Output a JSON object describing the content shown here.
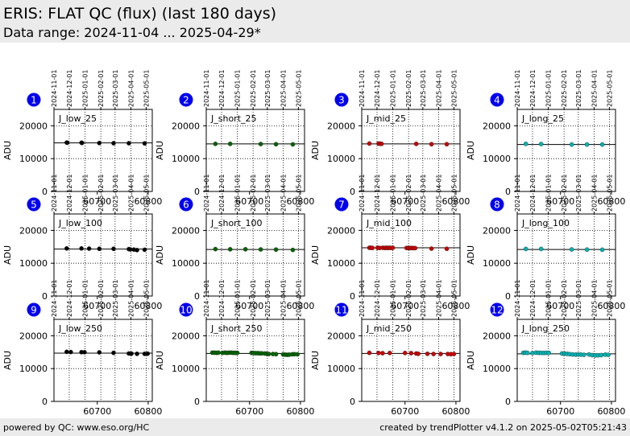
{
  "header": {
    "title": "ERIS: FLAT QC (flux) (last 180 days)",
    "subtitle": "Data range: 2024-11-04 ... 2025-04-29*"
  },
  "footer": {
    "left": "powered by QC: www.eso.org/HC",
    "right": "created by trendPlotter v4.1.2 on 2025-05-02T05:21:43"
  },
  "colors": {
    "black": "#000000",
    "green": "#006400",
    "red": "#cc0000",
    "cyan": "#00b3b3",
    "badge": "#0000ee"
  },
  "chart_data": [
    {
      "type": "scatter",
      "panel": 1,
      "label": "J_low_25",
      "color": "#000000",
      "ylabel": "ADU",
      "ylim": [
        0,
        25000
      ],
      "xlim": [
        60615,
        60808
      ],
      "yticks": [
        0,
        10000,
        20000
      ],
      "xticks": [
        60700,
        60800
      ],
      "date_ticks": [
        "2024-11-01",
        "2024-12-01",
        "2025-01-01",
        "2025-02-01",
        "2025-03-01",
        "2025-04-01",
        "2025-05-01"
      ],
      "ref": 14800,
      "points": [
        [
          60640,
          14900
        ],
        [
          60641,
          14850
        ],
        [
          60669,
          14850
        ],
        [
          60670,
          14800
        ],
        [
          60704,
          14750
        ],
        [
          60732,
          14700
        ],
        [
          60762,
          14700
        ],
        [
          60793,
          14650
        ]
      ]
    },
    {
      "type": "scatter",
      "panel": 2,
      "label": "J_short_25",
      "color": "#006400",
      "ylabel": "ADU",
      "ylim": [
        0,
        25000
      ],
      "xlim": [
        60615,
        60808
      ],
      "yticks": [
        0,
        10000,
        20000
      ],
      "xticks": [
        60700,
        60800
      ],
      "date_ticks": [
        "2024-11-01",
        "2024-12-01",
        "2025-01-01",
        "2025-02-01",
        "2025-03-01",
        "2025-04-01",
        "2025-05-01"
      ],
      "ref": 14500,
      "points": [
        [
          60633,
          14500
        ],
        [
          60662,
          14500
        ],
        [
          60722,
          14450
        ],
        [
          60752,
          14400
        ],
        [
          60785,
          14350
        ]
      ]
    },
    {
      "type": "scatter",
      "panel": 3,
      "label": "J_mid_25",
      "color": "#cc0000",
      "ylabel": "ADU",
      "ylim": [
        0,
        25000
      ],
      "xlim": [
        60615,
        60808
      ],
      "yticks": [
        0,
        10000,
        20000
      ],
      "xticks": [
        60700,
        60800
      ],
      "date_ticks": [
        "2024-11-01",
        "2024-12-01",
        "2025-01-01",
        "2025-02-01",
        "2025-03-01",
        "2025-04-01",
        "2025-05-01"
      ],
      "ref": 14500,
      "points": [
        [
          60630,
          14600
        ],
        [
          60648,
          14600
        ],
        [
          60651,
          14550
        ],
        [
          60654,
          14500
        ],
        [
          60722,
          14500
        ],
        [
          60752,
          14400
        ],
        [
          60782,
          14400
        ]
      ]
    },
    {
      "type": "scatter",
      "panel": 4,
      "label": "J_long_25",
      "color": "#00b3b3",
      "ylabel": "ADU",
      "ylim": [
        0,
        25000
      ],
      "xlim": [
        60615,
        60808
      ],
      "yticks": [
        0,
        10000,
        20000
      ],
      "xticks": [
        60700,
        60800
      ],
      "date_ticks": [
        "2024-11-01",
        "2024-12-01",
        "2025-01-01",
        "2025-02-01",
        "2025-03-01",
        "2025-04-01",
        "2025-05-01"
      ],
      "ref": 14300,
      "points": [
        [
          60632,
          14500
        ],
        [
          60662,
          14450
        ],
        [
          60722,
          14300
        ],
        [
          60752,
          14300
        ],
        [
          60782,
          14300
        ]
      ]
    },
    {
      "type": "scatter",
      "panel": 5,
      "label": "J_low_100",
      "color": "#000000",
      "ylabel": "ADU",
      "ylim": [
        0,
        25000
      ],
      "xlim": [
        60615,
        60808
      ],
      "yticks": [
        0,
        10000,
        20000
      ],
      "xticks": [
        60700,
        60800
      ],
      "date_ticks": [
        "2024-11-01",
        "2024-12-01",
        "2025-01-01",
        "2025-02-01",
        "2025-03-01",
        "2025-04-01",
        "2025-05-01"
      ],
      "ref": 14300,
      "points": [
        [
          60640,
          14500
        ],
        [
          60669,
          14500
        ],
        [
          60684,
          14450
        ],
        [
          60704,
          14400
        ],
        [
          60732,
          14400
        ],
        [
          60762,
          14300
        ],
        [
          60765,
          14200
        ],
        [
          60772,
          14150
        ],
        [
          60778,
          14000
        ],
        [
          60793,
          14100
        ]
      ]
    },
    {
      "type": "scatter",
      "panel": 6,
      "label": "J_short_100",
      "color": "#006400",
      "ylabel": "ADU",
      "ylim": [
        0,
        25000
      ],
      "xlim": [
        60615,
        60808
      ],
      "yticks": [
        0,
        10000,
        20000
      ],
      "xticks": [
        60700,
        60800
      ],
      "date_ticks": [
        "2024-11-01",
        "2024-12-01",
        "2025-01-01",
        "2025-02-01",
        "2025-03-01",
        "2025-04-01",
        "2025-05-01"
      ],
      "ref": 14200,
      "points": [
        [
          60633,
          14300
        ],
        [
          60662,
          14250
        ],
        [
          60692,
          14250
        ],
        [
          60722,
          14200
        ],
        [
          60752,
          14150
        ],
        [
          60785,
          14050
        ]
      ]
    },
    {
      "type": "scatter",
      "panel": 7,
      "label": "J_mid_100",
      "color": "#cc0000",
      "ylabel": "ADU",
      "ylim": [
        0,
        25000
      ],
      "xlim": [
        60615,
        60808
      ],
      "yticks": [
        0,
        10000,
        20000
      ],
      "xticks": [
        60700,
        60800
      ],
      "date_ticks": [
        "2024-11-01",
        "2024-12-01",
        "2025-01-01",
        "2025-02-01",
        "2025-03-01",
        "2025-04-01",
        "2025-05-01"
      ],
      "ref": 14700,
      "points": [
        [
          60630,
          14700
        ],
        [
          60633,
          14700
        ],
        [
          60636,
          14650
        ],
        [
          60646,
          14700
        ],
        [
          60650,
          14650
        ],
        [
          60656,
          14700
        ],
        [
          60660,
          14650
        ],
        [
          60663,
          14700
        ],
        [
          60666,
          14650
        ],
        [
          60669,
          14700
        ],
        [
          60672,
          14650
        ],
        [
          60676,
          14700
        ],
        [
          60703,
          14650
        ],
        [
          60707,
          14650
        ],
        [
          60710,
          14600
        ],
        [
          60713,
          14650
        ],
        [
          60716,
          14600
        ],
        [
          60720,
          14600
        ],
        [
          60752,
          14450
        ],
        [
          60782,
          14400
        ]
      ]
    },
    {
      "type": "scatter",
      "panel": 8,
      "label": "J_long_100",
      "color": "#00b3b3",
      "ylabel": "ADU",
      "ylim": [
        0,
        25000
      ],
      "xlim": [
        60615,
        60808
      ],
      "yticks": [
        0,
        10000,
        20000
      ],
      "xticks": [
        60700,
        60800
      ],
      "date_ticks": [
        "2024-11-01",
        "2024-12-01",
        "2025-01-01",
        "2025-02-01",
        "2025-03-01",
        "2025-04-01",
        "2025-05-01"
      ],
      "ref": 14200,
      "points": [
        [
          60632,
          14350
        ],
        [
          60662,
          14350
        ],
        [
          60722,
          14200
        ],
        [
          60752,
          14150
        ],
        [
          60782,
          14100
        ]
      ]
    },
    {
      "type": "scatter",
      "panel": 9,
      "label": "J_low_250",
      "color": "#000000",
      "ylabel": "ADU",
      "ylim": [
        0,
        25000
      ],
      "xlim": [
        60615,
        60808
      ],
      "yticks": [
        0,
        10000,
        20000
      ],
      "xticks": [
        60700,
        60800
      ],
      "date_ticks": [
        "2024-11-01",
        "2024-12-01",
        "2025-01-01",
        "2025-02-01",
        "2025-03-01",
        "2025-04-01",
        "2025-05-01"
      ],
      "ref": 14700,
      "points": [
        [
          60640,
          15100
        ],
        [
          60648,
          15050
        ],
        [
          60669,
          15000
        ],
        [
          60675,
          15000
        ],
        [
          60704,
          14950
        ],
        [
          60732,
          14800
        ],
        [
          60762,
          14600
        ],
        [
          60767,
          14550
        ],
        [
          60778,
          14500
        ],
        [
          60793,
          14500
        ],
        [
          60799,
          14550
        ]
      ]
    },
    {
      "type": "scatter",
      "panel": 10,
      "label": "J_short_250",
      "color": "#006400",
      "ylabel": "ADU",
      "ylim": [
        0,
        25000
      ],
      "xlim": [
        60615,
        60808
      ],
      "yticks": [
        0,
        10000,
        20000
      ],
      "xticks": [
        60700,
        60800
      ],
      "date_ticks": [
        "2024-11-01",
        "2024-12-01",
        "2025-01-01",
        "2025-02-01",
        "2025-03-01",
        "2025-04-01",
        "2025-05-01"
      ],
      "ref": 14600,
      "points": [
        [
          60627,
          14850
        ],
        [
          60631,
          14850
        ],
        [
          60635,
          14800
        ],
        [
          60639,
          14850
        ],
        [
          60647,
          14800
        ],
        [
          60652,
          14850
        ],
        [
          60656,
          14800
        ],
        [
          60660,
          14850
        ],
        [
          60664,
          14850
        ],
        [
          60668,
          14800
        ],
        [
          60672,
          14800
        ],
        [
          60676,
          14800
        ],
        [
          60704,
          14800
        ],
        [
          60708,
          14750
        ],
        [
          60712,
          14700
        ],
        [
          60716,
          14700
        ],
        [
          60720,
          14650
        ],
        [
          60724,
          14650
        ],
        [
          60730,
          14600
        ],
        [
          60734,
          14500
        ],
        [
          60738,
          14450
        ],
        [
          60746,
          14450
        ],
        [
          60752,
          14400
        ],
        [
          60766,
          14300
        ],
        [
          60770,
          14250
        ],
        [
          60774,
          14200
        ],
        [
          60778,
          14250
        ],
        [
          60784,
          14350
        ],
        [
          60788,
          14400
        ],
        [
          60794,
          14350
        ]
      ]
    },
    {
      "type": "scatter",
      "panel": 11,
      "label": "J_mid_250",
      "color": "#cc0000",
      "ylabel": "ADU",
      "ylim": [
        0,
        25000
      ],
      "xlim": [
        60615,
        60808
      ],
      "yticks": [
        0,
        10000,
        20000
      ],
      "xticks": [
        60700,
        60800
      ],
      "date_ticks": [
        "2024-11-01",
        "2024-12-01",
        "2025-01-01",
        "2025-02-01",
        "2025-03-01",
        "2025-04-01",
        "2025-05-01"
      ],
      "ref": 14600,
      "points": [
        [
          60630,
          14800
        ],
        [
          60648,
          14750
        ],
        [
          60656,
          14700
        ],
        [
          60670,
          14750
        ],
        [
          60700,
          14750
        ],
        [
          60712,
          14700
        ],
        [
          60722,
          14600
        ],
        [
          60726,
          14500
        ],
        [
          60744,
          14500
        ],
        [
          60756,
          14450
        ],
        [
          60770,
          14450
        ],
        [
          60784,
          14450
        ],
        [
          60790,
          14400
        ],
        [
          60796,
          14450
        ]
      ]
    },
    {
      "type": "scatter",
      "panel": 12,
      "label": "J_long_250",
      "color": "#00b3b3",
      "ylabel": "ADU",
      "ylim": [
        0,
        25000
      ],
      "xlim": [
        60615,
        60808
      ],
      "yticks": [
        0,
        10000,
        20000
      ],
      "xticks": [
        60700,
        60800
      ],
      "date_ticks": [
        "2024-11-01",
        "2024-12-01",
        "2025-01-01",
        "2025-02-01",
        "2025-03-01",
        "2025-04-01",
        "2025-05-01"
      ],
      "ref": 14500,
      "points": [
        [
          60627,
          14800
        ],
        [
          60631,
          14850
        ],
        [
          60635,
          14800
        ],
        [
          60645,
          14750
        ],
        [
          60652,
          14850
        ],
        [
          60657,
          14800
        ],
        [
          60662,
          14800
        ],
        [
          60667,
          14750
        ],
        [
          60672,
          14800
        ],
        [
          60677,
          14800
        ],
        [
          60703,
          14600
        ],
        [
          60708,
          14550
        ],
        [
          60713,
          14500
        ],
        [
          60718,
          14400
        ],
        [
          60724,
          14300
        ],
        [
          60730,
          14250
        ],
        [
          60735,
          14300
        ],
        [
          60740,
          14250
        ],
        [
          60746,
          14200
        ],
        [
          60756,
          14300
        ],
        [
          60762,
          14100
        ],
        [
          60768,
          14000
        ],
        [
          60774,
          14050
        ],
        [
          60780,
          14100
        ],
        [
          60788,
          14250
        ],
        [
          60794,
          14200
        ]
      ]
    }
  ]
}
